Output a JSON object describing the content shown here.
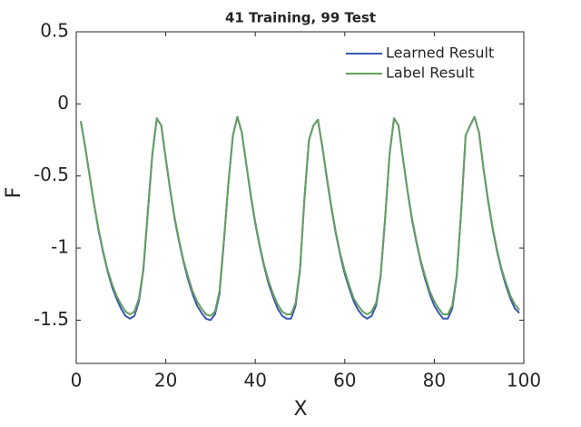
{
  "chart_data": {
    "type": "line",
    "title": "41 Training, 99 Test",
    "xlabel": "X",
    "ylabel": "F",
    "x": [
      1,
      2,
      3,
      4,
      5,
      6,
      7,
      8,
      9,
      10,
      11,
      12,
      13,
      14,
      15,
      16,
      17,
      18,
      19,
      20,
      21,
      22,
      23,
      24,
      25,
      26,
      27,
      28,
      29,
      30,
      31,
      32,
      33,
      34,
      35,
      36,
      37,
      38,
      39,
      40,
      41,
      42,
      43,
      44,
      45,
      46,
      47,
      48,
      49,
      50,
      51,
      52,
      53,
      54,
      55,
      56,
      57,
      58,
      59,
      60,
      61,
      62,
      63,
      64,
      65,
      66,
      67,
      68,
      69,
      70,
      71,
      72,
      73,
      74,
      75,
      76,
      77,
      78,
      79,
      80,
      81,
      82,
      83,
      84,
      85,
      86,
      87,
      88,
      89,
      90,
      91,
      92,
      93,
      94,
      95,
      96,
      97,
      98,
      99
    ],
    "series": [
      {
        "name": "Learned Result",
        "color": "#3a56b4",
        "values": [
          -0.12,
          -0.3,
          -0.5,
          -0.7,
          -0.88,
          -1.03,
          -1.16,
          -1.27,
          -1.35,
          -1.42,
          -1.47,
          -1.49,
          -1.47,
          -1.37,
          -1.15,
          -0.75,
          -0.35,
          -0.1,
          -0.15,
          -0.38,
          -0.6,
          -0.8,
          -0.96,
          -1.1,
          -1.22,
          -1.32,
          -1.4,
          -1.45,
          -1.49,
          -1.5,
          -1.46,
          -1.32,
          -0.95,
          -0.55,
          -0.22,
          -0.09,
          -0.2,
          -0.42,
          -0.64,
          -0.83,
          -0.99,
          -1.13,
          -1.25,
          -1.34,
          -1.42,
          -1.47,
          -1.49,
          -1.49,
          -1.4,
          -1.15,
          -0.65,
          -0.25,
          -0.15,
          -0.11,
          -0.3,
          -0.52,
          -0.72,
          -0.9,
          -1.05,
          -1.18,
          -1.28,
          -1.37,
          -1.43,
          -1.47,
          -1.49,
          -1.47,
          -1.4,
          -1.2,
          -0.8,
          -0.35,
          -0.1,
          -0.15,
          -0.38,
          -0.6,
          -0.8,
          -0.96,
          -1.1,
          -1.22,
          -1.32,
          -1.4,
          -1.45,
          -1.49,
          -1.49,
          -1.42,
          -1.2,
          -0.75,
          -0.22,
          -0.15,
          -0.09,
          -0.2,
          -0.45,
          -0.67,
          -0.86,
          -1.02,
          -1.15,
          -1.26,
          -1.35,
          -1.42,
          -1.45
        ]
      },
      {
        "name": "Label Result",
        "color": "#66a060",
        "values": [
          -0.12,
          -0.3,
          -0.5,
          -0.7,
          -0.87,
          -1.02,
          -1.15,
          -1.25,
          -1.33,
          -1.39,
          -1.44,
          -1.46,
          -1.44,
          -1.35,
          -1.14,
          -0.74,
          -0.35,
          -0.1,
          -0.15,
          -0.38,
          -0.6,
          -0.79,
          -0.95,
          -1.09,
          -1.2,
          -1.3,
          -1.37,
          -1.42,
          -1.46,
          -1.47,
          -1.44,
          -1.3,
          -0.94,
          -0.55,
          -0.22,
          -0.09,
          -0.2,
          -0.42,
          -0.63,
          -0.82,
          -0.98,
          -1.12,
          -1.23,
          -1.32,
          -1.39,
          -1.44,
          -1.46,
          -1.46,
          -1.38,
          -1.14,
          -0.65,
          -0.25,
          -0.15,
          -0.11,
          -0.3,
          -0.51,
          -0.71,
          -0.89,
          -1.04,
          -1.16,
          -1.26,
          -1.35,
          -1.4,
          -1.44,
          -1.46,
          -1.44,
          -1.38,
          -1.19,
          -0.8,
          -0.35,
          -0.1,
          -0.15,
          -0.38,
          -0.6,
          -0.79,
          -0.95,
          -1.09,
          -1.2,
          -1.3,
          -1.37,
          -1.42,
          -1.46,
          -1.46,
          -1.4,
          -1.19,
          -0.75,
          -0.22,
          -0.15,
          -0.09,
          -0.2,
          -0.45,
          -0.66,
          -0.85,
          -1.01,
          -1.14,
          -1.24,
          -1.33,
          -1.39,
          -1.43
        ]
      }
    ],
    "xlim": [
      0,
      100
    ],
    "xticks": [
      0,
      20,
      40,
      60,
      80,
      100
    ],
    "ylim": [
      -1.8,
      0.5
    ],
    "yticks": [
      -1.5,
      -1,
      -0.5,
      0,
      0.5
    ],
    "legend": "northeast"
  }
}
